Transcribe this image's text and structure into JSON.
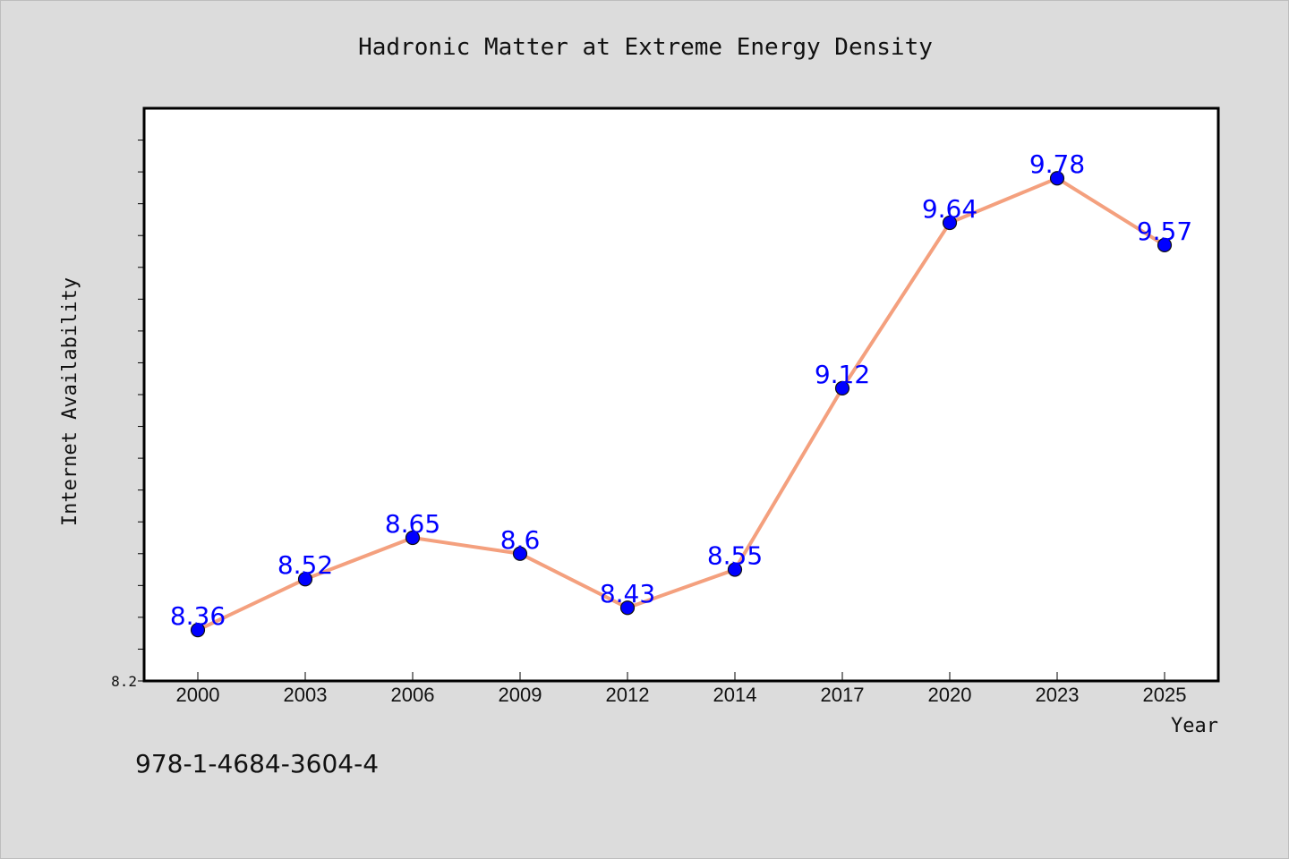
{
  "chart_data": {
    "type": "line",
    "title": "Hadronic Matter at Extreme Energy Density",
    "xlabel": "Year",
    "ylabel": "Internet Availability",
    "categories": [
      "2000",
      "2003",
      "2006",
      "2009",
      "2012",
      "2014",
      "2017",
      "2020",
      "2023",
      "2025"
    ],
    "series": [
      {
        "values": [
          8.36,
          8.52,
          8.65,
          8.6,
          8.43,
          8.55,
          9.12,
          9.64,
          9.78,
          9.57
        ],
        "labels": [
          "8.36",
          "8.52",
          "8.65",
          "8.6",
          "8.43",
          "8.55",
          "9.12",
          "9.64",
          "9.78",
          "9.57"
        ],
        "line_color": "#f4a07e",
        "marker_color": "#0000ff"
      }
    ],
    "ylim": [
      8.2,
      10.0
    ],
    "y_tick_labels": [
      "8.2"
    ],
    "grid": false,
    "background": "#dcdcdc",
    "plot_background": "#ffffff"
  },
  "footer": {
    "code": "978-1-4684-3604-4"
  }
}
